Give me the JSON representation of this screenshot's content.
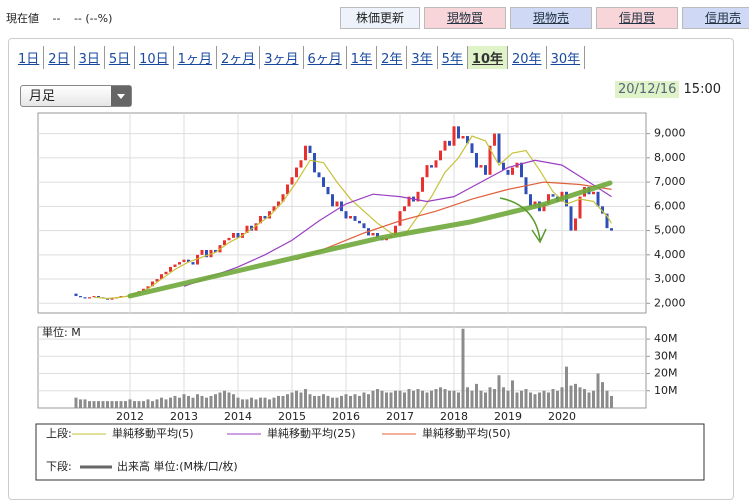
{
  "header": {
    "price_label": "現在値",
    "price": "--",
    "change": "-- (--%)"
  },
  "buttons": [
    "株価更新",
    "現物買",
    "現物売",
    "信用買",
    "信用売"
  ],
  "tabs": [
    "1日",
    "2日",
    "3日",
    "5日",
    "10日",
    "1ヶ月",
    "2ヶ月",
    "3ヶ月",
    "6ヶ月",
    "1年",
    "2年",
    "3年",
    "5年",
    "10年",
    "20年",
    "30年"
  ],
  "active_tab": 13,
  "period_select": "月足",
  "timestamp": {
    "date": "20/12/16",
    "time": "15:00"
  },
  "legend": {
    "upper_label": "上段:",
    "lower_label": "下段:"
  },
  "chart_data": [
    {
      "type": "candlestick",
      "up_color": "#e8302e",
      "down_color": "#2f4fb8",
      "grid": true,
      "ylim": [
        1600,
        9850
      ],
      "yticks": [
        {
          "value": 2000,
          "label": "2,000"
        },
        {
          "value": 3000,
          "label": "3,000"
        },
        {
          "value": 4000,
          "label": "4,000"
        },
        {
          "value": 5000,
          "label": "5,000"
        },
        {
          "value": 6000,
          "label": "6,000"
        },
        {
          "value": 7000,
          "label": "7,000"
        },
        {
          "value": 8000,
          "label": "8,000"
        },
        {
          "value": 9000,
          "label": "9,000"
        }
      ],
      "open": [
        2400,
        2300,
        2250,
        2200,
        2250,
        2300,
        2250,
        2200,
        2150,
        2200,
        2250,
        2300,
        2300,
        2350,
        2400,
        2500,
        2600,
        2700,
        2900,
        3000,
        3200,
        3300,
        3500,
        3600,
        3700,
        3800,
        3700,
        3600,
        4000,
        4200,
        3900,
        4200,
        4100,
        4400,
        4600,
        4700,
        4900,
        4700,
        4900,
        5200,
        5000,
        5300,
        5600,
        5500,
        5800,
        6000,
        6200,
        6500,
        6900,
        7200,
        7600,
        7900,
        8500,
        8200,
        7400,
        7200,
        6800,
        6500,
        6000,
        6200,
        5800,
        5500,
        5600,
        5400,
        5300,
        5100,
        4800,
        4900,
        4700,
        4600,
        4700,
        4800,
        5200,
        5800,
        6000,
        6400,
        6200,
        6600,
        7200,
        7700,
        7600,
        7900,
        8300,
        8700,
        8500,
        9300,
        8800,
        8900,
        8600,
        8200,
        7600,
        7700,
        7300,
        8500,
        9000,
        7800,
        7500,
        7300,
        7600,
        7800,
        7200,
        6500,
        6000,
        6200,
        5800,
        6100,
        6500,
        6400,
        6200,
        6600,
        6000,
        5000,
        5500,
        6400,
        6800,
        6500,
        6600,
        6000,
        5700,
        5100
      ],
      "close": [
        2300,
        2250,
        2200,
        2250,
        2300,
        2250,
        2200,
        2150,
        2200,
        2250,
        2300,
        2300,
        2350,
        2400,
        2500,
        2600,
        2700,
        2900,
        3000,
        3200,
        3300,
        3500,
        3600,
        3700,
        3800,
        3700,
        3600,
        4000,
        4200,
        3900,
        4200,
        4100,
        4400,
        4600,
        4700,
        4900,
        4700,
        4900,
        5200,
        5000,
        5300,
        5600,
        5500,
        5800,
        6000,
        6200,
        6500,
        6900,
        7200,
        7600,
        7900,
        8500,
        8200,
        7400,
        7200,
        6800,
        6500,
        6000,
        6200,
        5800,
        5500,
        5600,
        5400,
        5300,
        5100,
        4800,
        4900,
        4700,
        4600,
        4700,
        4800,
        5200,
        5800,
        6000,
        6400,
        6200,
        6600,
        7200,
        7700,
        7600,
        7900,
        8300,
        8700,
        8500,
        9300,
        8800,
        8900,
        8600,
        8200,
        7600,
        7700,
        7300,
        8500,
        9000,
        7800,
        7500,
        7300,
        7600,
        7800,
        7200,
        6500,
        6000,
        6200,
        5800,
        6100,
        6500,
        6400,
        6200,
        6600,
        6000,
        5000,
        5500,
        6400,
        6800,
        6500,
        6600,
        6000,
        5700,
        5100,
        5000
      ],
      "series": [
        {
          "name": "単純移動平均(5)",
          "color": "#c8c23a",
          "x": [
            4,
            7,
            10,
            13,
            16,
            19,
            22,
            25,
            28,
            31,
            34,
            37,
            40,
            43,
            46,
            49,
            52,
            55,
            58,
            61,
            64,
            67,
            70,
            73,
            76,
            79,
            82,
            85,
            88,
            91,
            94,
            97,
            100,
            103,
            106,
            109,
            112,
            115,
            118,
            119
          ],
          "values": [
            2250,
            2200,
            2250,
            2350,
            2600,
            3000,
            3400,
            3700,
            3900,
            4100,
            4500,
            4800,
            5200,
            5600,
            6200,
            7000,
            7900,
            7800,
            7000,
            6300,
            5800,
            5300,
            4900,
            4800,
            5600,
            6400,
            7400,
            8000,
            8900,
            8700,
            7700,
            8200,
            8300,
            7500,
            6600,
            6100,
            6300,
            6200,
            5600,
            5300
          ]
        },
        {
          "name": "単純移動平均(25)",
          "color": "#9b3fc4",
          "x": [
            24,
            30,
            36,
            42,
            48,
            54,
            60,
            66,
            72,
            78,
            84,
            90,
            96,
            102,
            108,
            114,
            119
          ],
          "values": [
            2700,
            3100,
            3500,
            4000,
            4600,
            5400,
            6100,
            6500,
            6400,
            6200,
            6400,
            7000,
            7600,
            7900,
            7700,
            7000,
            6400
          ]
        },
        {
          "name": "単純移動平均(50)",
          "color": "#e0603a",
          "x": [
            49,
            56,
            64,
            72,
            80,
            88,
            96,
            104,
            112,
            119
          ],
          "values": [
            3800,
            4300,
            4900,
            5400,
            5800,
            6300,
            6700,
            7000,
            6900,
            6700
          ]
        }
      ]
    },
    {
      "type": "bar",
      "color": "#8c8c8c",
      "unit_label": "単位: M",
      "legend_label": "出来高 単位:(M株/口/枚)",
      "grid": true,
      "ylim": [
        0,
        47
      ],
      "yticks": [
        {
          "value": 10,
          "label": "10M"
        },
        {
          "value": 20,
          "label": "20M"
        },
        {
          "value": 30,
          "label": "30M"
        },
        {
          "value": 40,
          "label": "40M"
        }
      ],
      "categories": [
        null,
        null,
        null,
        null,
        null,
        null,
        null,
        null,
        null,
        null,
        null,
        null,
        "2012",
        null,
        null,
        null,
        null,
        null,
        null,
        null,
        null,
        null,
        null,
        null,
        "2013",
        null,
        null,
        null,
        null,
        null,
        null,
        null,
        null,
        null,
        null,
        null,
        "2014",
        null,
        null,
        null,
        null,
        null,
        null,
        null,
        null,
        null,
        null,
        null,
        "2015",
        null,
        null,
        null,
        null,
        null,
        null,
        null,
        null,
        null,
        null,
        null,
        "2016",
        null,
        null,
        null,
        null,
        null,
        null,
        null,
        null,
        null,
        null,
        null,
        "2017",
        null,
        null,
        null,
        null,
        null,
        null,
        null,
        null,
        null,
        null,
        null,
        "2018",
        null,
        null,
        null,
        null,
        null,
        null,
        null,
        null,
        null,
        null,
        null,
        "2019",
        null,
        null,
        null,
        null,
        null,
        null,
        null,
        null,
        null,
        null,
        null,
        "2020",
        null,
        null,
        null,
        null,
        null,
        null,
        null,
        null,
        null,
        null,
        null
      ],
      "values": [
        6,
        5,
        5,
        4,
        4,
        4,
        4,
        4,
        4,
        4,
        4,
        4,
        5,
        4,
        4,
        4,
        5,
        4,
        5,
        6,
        5,
        6,
        7,
        6,
        8,
        7,
        6,
        8,
        7,
        6,
        7,
        8,
        9,
        10,
        9,
        8,
        6,
        5,
        5,
        6,
        5,
        6,
        6,
        5,
        6,
        7,
        7,
        8,
        9,
        10,
        9,
        11,
        8,
        7,
        7,
        8,
        7,
        6,
        6,
        7,
        8,
        7,
        8,
        7,
        9,
        8,
        10,
        11,
        10,
        9,
        9,
        10,
        10,
        9,
        11,
        10,
        11,
        10,
        9,
        10,
        11,
        12,
        11,
        10,
        10,
        9,
        46,
        12,
        10,
        14,
        10,
        9,
        12,
        11,
        19,
        12,
        10,
        16,
        9,
        10,
        11,
        9,
        8,
        9,
        10,
        9,
        11,
        10,
        12,
        24,
        13,
        14,
        12,
        11,
        9,
        10,
        20,
        15,
        10,
        7
      ]
    }
  ]
}
